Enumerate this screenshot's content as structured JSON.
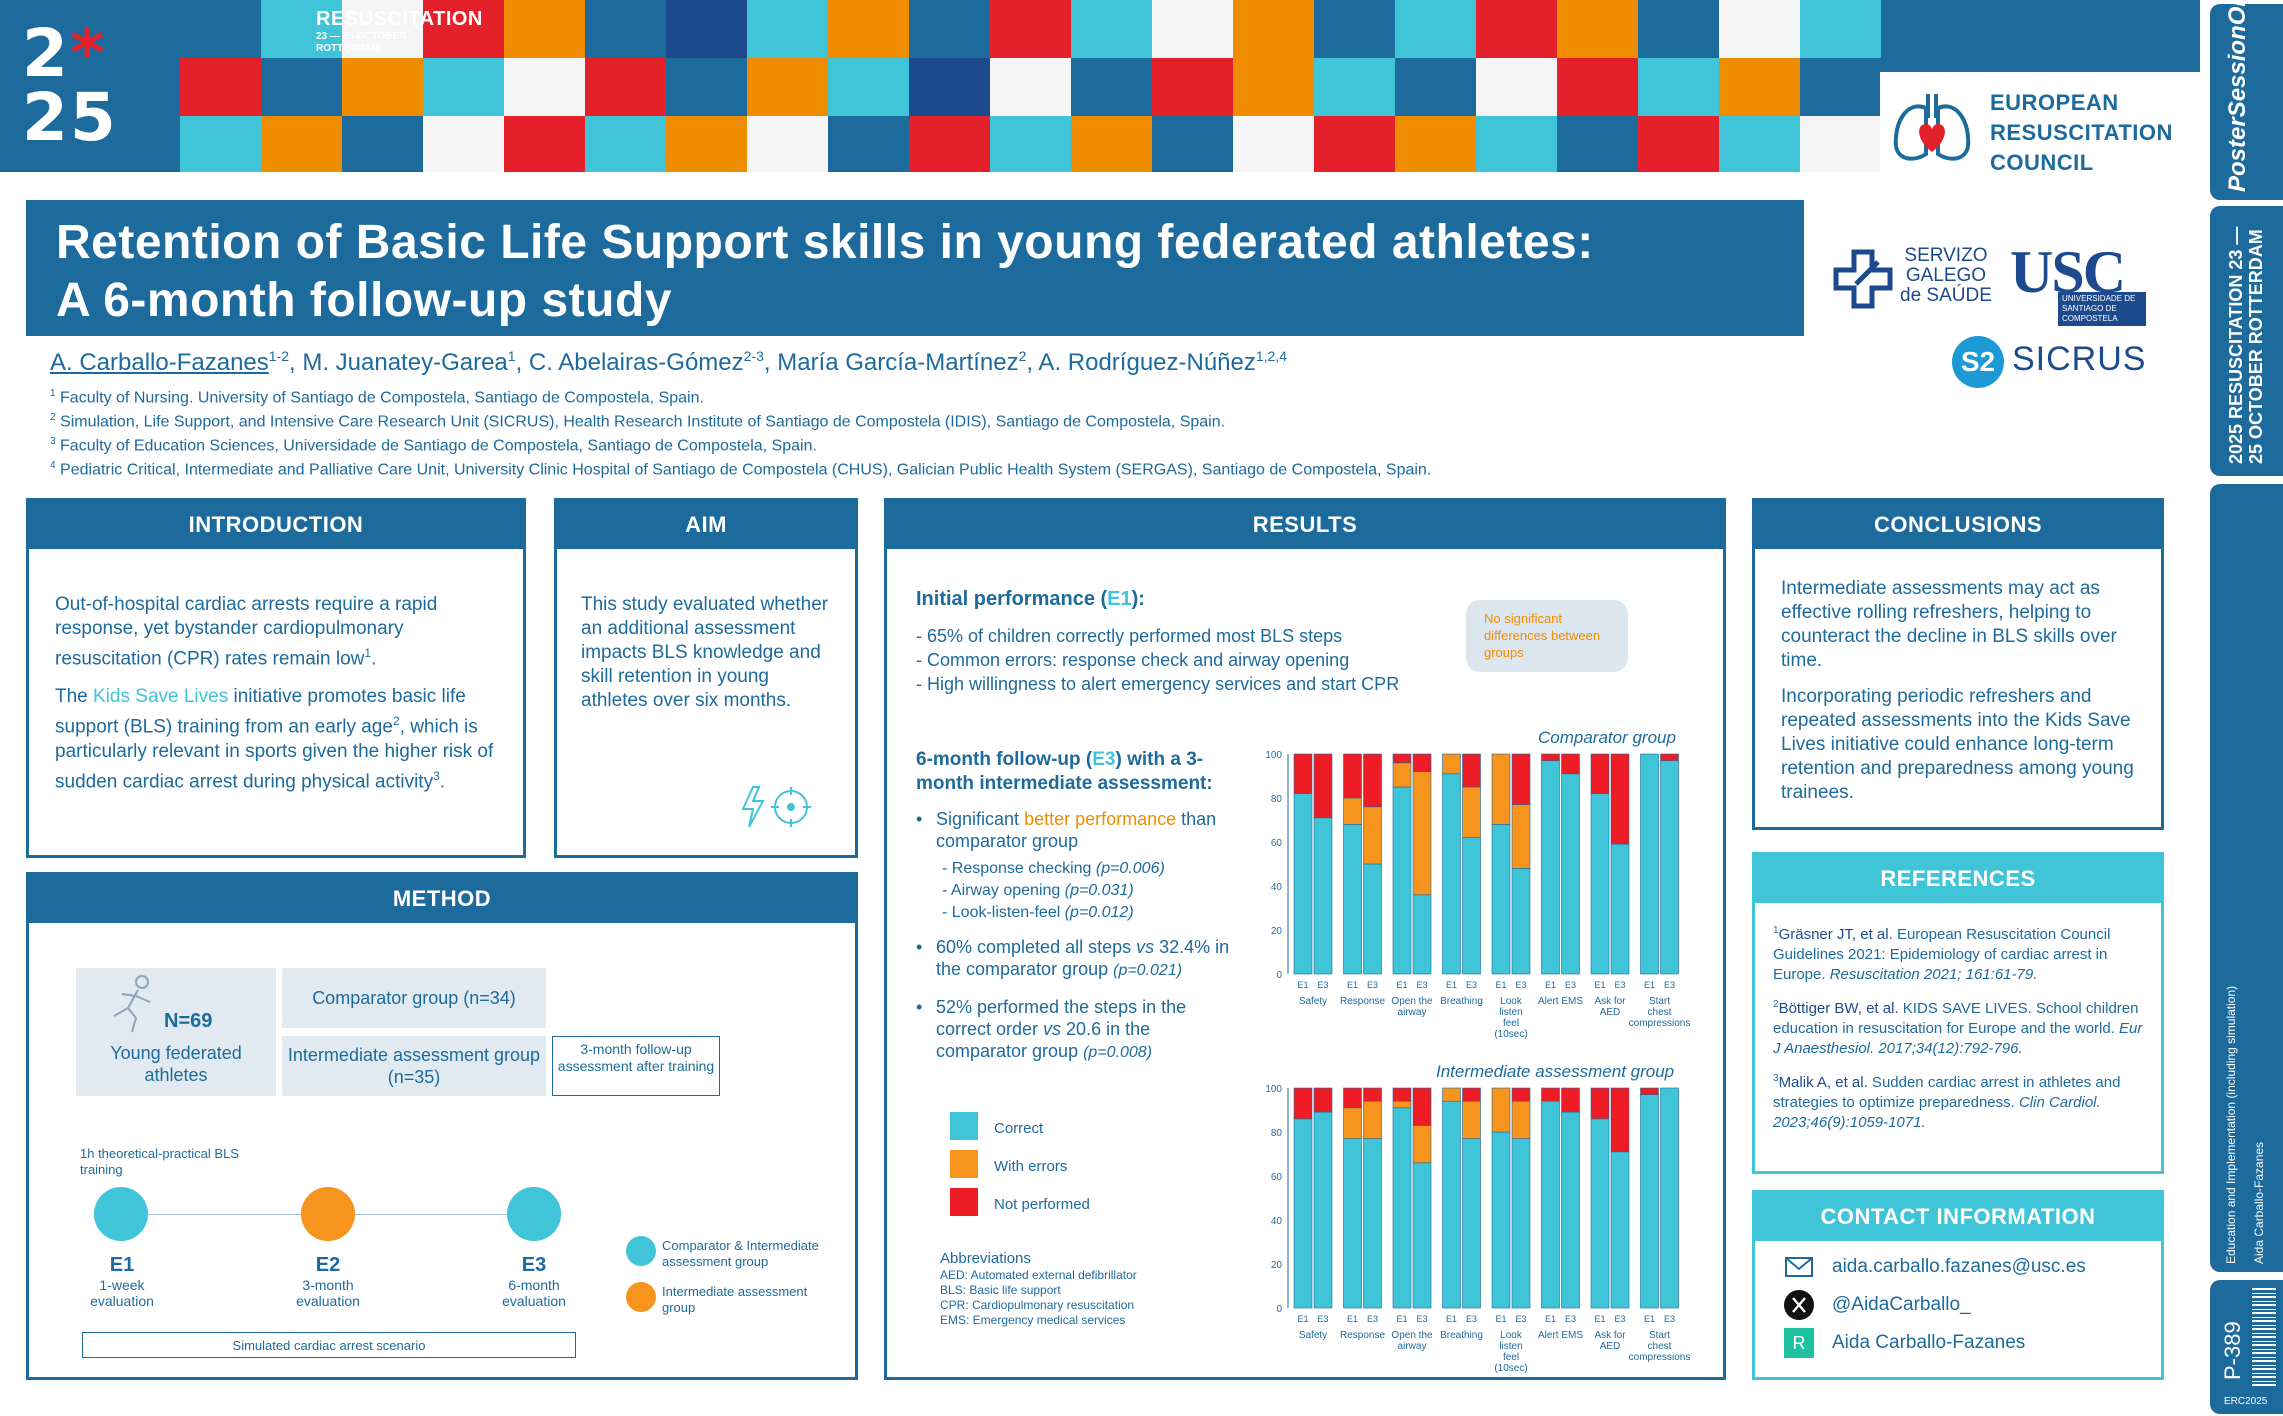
{
  "banner": {
    "year_top": "2",
    "year_ast": "*",
    "year_top2": "5",
    "year_bottom": "25",
    "conference": "RESUSCITATION",
    "dates": "23 — 25 OCTOBER",
    "city": "ROTTERDAM",
    "erc_lines": [
      "EUROPEAN",
      "RESUSCITATION",
      "COUNCIL"
    ],
    "tile_colors": [
      "#1d6a9c",
      "#40c4d8",
      "#f5f5f5",
      "#e4212b",
      "#f08c00",
      "#1d4a8c"
    ]
  },
  "strip": {
    "poster_session": "PosterSessionOnline",
    "badge": "2025 RESUSCITATION 23 — 25 OCTOBER ROTTERDAM",
    "topic": "Education and Implementation (including simulation)",
    "author": "Aida Carballo-Fazanes",
    "poster_id": "P-389",
    "event_code": "ERC2025"
  },
  "title": {
    "line1": "Retention of Basic Life Support skills in young federated athletes:",
    "line2": "A 6-month follow-up study"
  },
  "authors": {
    "a1": "A. Carballo-Fazanes",
    "a1_sup": "1-2",
    "a2": ", M. Juanatey-Garea",
    "a2_sup": "1",
    "a3": ", C. Abelairas-Gómez",
    "a3_sup": "2-3",
    "a4": ", María García-Martínez",
    "a4_sup": "2",
    "a5": ", A. Rodríguez-Núñez",
    "a5_sup": "1,2,4"
  },
  "affiliations": [
    {
      "num": "1",
      "text": "Faculty of Nursing. University of Santiago de Compostela, Santiago de Compostela, Spain."
    },
    {
      "num": "2",
      "text": "Simulation, Life Support, and Intensive Care Research Unit (SICRUS), Health Research Institute of Santiago de Compostela (IDIS), Santiago de Compostela, Spain."
    },
    {
      "num": "3",
      "text": "Faculty of Education Sciences, Universidade de Santiago de Compostela, Santiago de Compostela, Spain."
    },
    {
      "num": "4",
      "text": "Pediatric Critical, Intermediate and Palliative Care Unit, University Clinic Hospital of Santiago de Compostela (CHUS), Galician Public Health System (SERGAS), Santiago de Compostela, Spain."
    }
  ],
  "logos": {
    "sergas": [
      "SERVIZO",
      "GALEGO",
      "de SAÚDE"
    ],
    "usc": "USC",
    "usc_sub": "UNIVERSIDADE DE SANTIAGO DE COMPOSTELA",
    "sicrus_mark": "S2",
    "sicrus": "SICRUS"
  },
  "introduction": {
    "heading": "INTRODUCTION",
    "p1": "Out-of-hospital cardiac arrests require a rapid response, yet bystander cardiopulmonary resuscitation (CPR) rates remain low",
    "p1_sup": "1",
    "p1_end": ".",
    "p2_pre": "The ",
    "p2_hl": "Kids Save Lives",
    "p2_post": " initiative promotes basic life support (BLS) training from an early age",
    "p2_sup": "2",
    "p2_post2": ", which is particularly relevant in sports given the higher risk of sudden cardiac arrest during physical activity",
    "p2_sup2": "3",
    "p2_end": "."
  },
  "aim": {
    "heading": "AIM",
    "text": "This study evaluated whether an additional assessment impacts BLS knowledge and skill retention in young athletes over six months."
  },
  "method": {
    "heading": "METHOD",
    "n": "N=69",
    "sample": "Young federated athletes",
    "comparator": "Comparator group (n=34)",
    "intermediate": "Intermediate assessment group (n=35)",
    "followup": "3-month follow-up assessment after training",
    "training": "1h theoretical-practical BLS training",
    "evals": [
      {
        "code": "E1",
        "label": "1-week evaluation"
      },
      {
        "code": "E2",
        "label": "3-month evaluation"
      },
      {
        "code": "E3",
        "label": "6-month evaluation"
      }
    ],
    "scenario": "Simulated cardiac arrest scenario",
    "legend_both": "Comparator & Intermediate assessment group",
    "legend_inter": "Intermediate assessment group"
  },
  "results": {
    "heading": "RESULTS",
    "initial_title_pre": "Initial performance (",
    "initial_title_e": "E1",
    "initial_title_post": "):",
    "initial_items": [
      "- 65% of children correctly performed most BLS steps",
      "- Common errors: response check and airway opening",
      "- High willingness to alert emergency services and start CPR"
    ],
    "bubble": "No significant differences between groups",
    "follow_title_pre": "6-month follow-up (",
    "follow_title_e": "E3",
    "follow_title_post": ")  with a 3-month intermediate assessment:",
    "b1_pre": "Significant ",
    "b1_hl": "better performance",
    "b1_post": " than comparator group",
    "sub_items": [
      {
        "label": "- Response checking ",
        "p": "(p=0.006)"
      },
      {
        "label": "- Airway opening ",
        "p": "(p=0.031)"
      },
      {
        "label": "- Look-listen-feel ",
        "p": "(p=0.012)"
      }
    ],
    "b2_pre": "60% completed all steps ",
    "b2_vs": "vs",
    "b2_post": " 32.4% in the comparator group ",
    "b2_p": "(p=0.021)",
    "b3_pre": "52% performed the steps in the correct order ",
    "b3_vs": "vs",
    "b3_post": " 20.6 in the comparator group ",
    "b3_p": "(p=0.008)",
    "legend": [
      {
        "label": "Correct",
        "color": "#40c4d8"
      },
      {
        "label": "With errors",
        "color": "#f7941d"
      },
      {
        "label": "Not performed",
        "color": "#ee1c25"
      }
    ],
    "abbr_title": "Abbreviations",
    "abbr": [
      "AED: Automated external defibrillator",
      "BLS: Basic life support",
      "CPR: Cardiopulmonary resuscitation",
      "EMS: Emergency medical services"
    ]
  },
  "chart_data": [
    {
      "type": "bar",
      "stacked": true,
      "title": "Comparator group",
      "categories": [
        "Safety",
        "Response",
        "Open the airway",
        "Breathing",
        "Look listen feel (10sec)",
        "Alert EMS",
        "Ask for AED",
        "Start chest compressions"
      ],
      "bar_labels": [
        "E1",
        "E3"
      ],
      "ylim": [
        0,
        100
      ],
      "yticks": [
        0,
        20,
        40,
        60,
        80,
        100
      ],
      "series": [
        {
          "name": "Correct",
          "E1": [
            82,
            68,
            85,
            91,
            68,
            97,
            82,
            100
          ],
          "E3": [
            71,
            50,
            36,
            62,
            48,
            91,
            59,
            97
          ]
        },
        {
          "name": "With errors",
          "E1": [
            0,
            12,
            11,
            9,
            32,
            0,
            0,
            0
          ],
          "E3": [
            0,
            26,
            56,
            23,
            29,
            0,
            0,
            0
          ]
        },
        {
          "name": "Not performed",
          "E1": [
            18,
            20,
            4,
            0,
            0,
            3,
            18,
            0
          ],
          "E3": [
            29,
            24,
            8,
            15,
            23,
            9,
            41,
            3
          ]
        }
      ]
    },
    {
      "type": "bar",
      "stacked": true,
      "title": "Intermediate assessment group",
      "categories": [
        "Safety",
        "Response",
        "Open the airway",
        "Breathing",
        "Look listen feel (10sec)",
        "Alert EMS",
        "Ask for AED",
        "Start chest compressions"
      ],
      "bar_labels": [
        "E1",
        "E3"
      ],
      "ylim": [
        0,
        100
      ],
      "yticks": [
        0,
        20,
        40,
        60,
        80,
        100
      ],
      "series": [
        {
          "name": "Correct",
          "E1": [
            86,
            77,
            91,
            94,
            80,
            94,
            86,
            97
          ],
          "E3": [
            89,
            77,
            66,
            77,
            77,
            89,
            71,
            100
          ]
        },
        {
          "name": "With errors",
          "E1": [
            0,
            14,
            3,
            6,
            20,
            0,
            0,
            0
          ],
          "E3": [
            0,
            17,
            17,
            17,
            17,
            0,
            0,
            0
          ]
        },
        {
          "name": "Not performed",
          "E1": [
            14,
            9,
            6,
            0,
            0,
            6,
            14,
            3
          ],
          "E3": [
            11,
            6,
            17,
            6,
            6,
            11,
            29,
            0
          ]
        }
      ]
    }
  ],
  "conclusions": {
    "heading": "CONCLUSIONS",
    "p1": "Intermediate assessments may act as effective rolling refreshers, helping to counteract the decline in BLS skills over time.",
    "p2": "Incorporating periodic refreshers and repeated assessments into the Kids Save Lives initiative could enhance long-term retention and preparedness among young trainees."
  },
  "references": {
    "heading": "REFERENCES",
    "items": [
      {
        "sup": "1",
        "authors": "Gräsner JT, et al.",
        "title": " European Resuscitation Council Guidelines 2021: Epidemiology of cardiac arrest in Europe. ",
        "journal": "Resuscitation 2021; 161:61-79."
      },
      {
        "sup": "2",
        "authors": "Böttiger BW, et al.",
        "title": " KIDS SAVE LIVES. School children education in resuscitation for Europe and the world. ",
        "journal": "Eur J Anaesthesiol. 2017;34(12):792-796."
      },
      {
        "sup": "3",
        "authors": "Malik A, et al.",
        "title": " Sudden cardiac arrest in athletes and strategies to optimize preparedness. ",
        "journal": "Clin Cardiol. 2023;46(9):1059-1071."
      }
    ]
  },
  "contact": {
    "heading": "CONTACT INFORMATION",
    "email": "aida.carballo.fazanes@usc.es",
    "twitter": "@AidaCarballo_",
    "researchgate": "Aida Carballo-Fazanes",
    "rg_mark": "R"
  }
}
